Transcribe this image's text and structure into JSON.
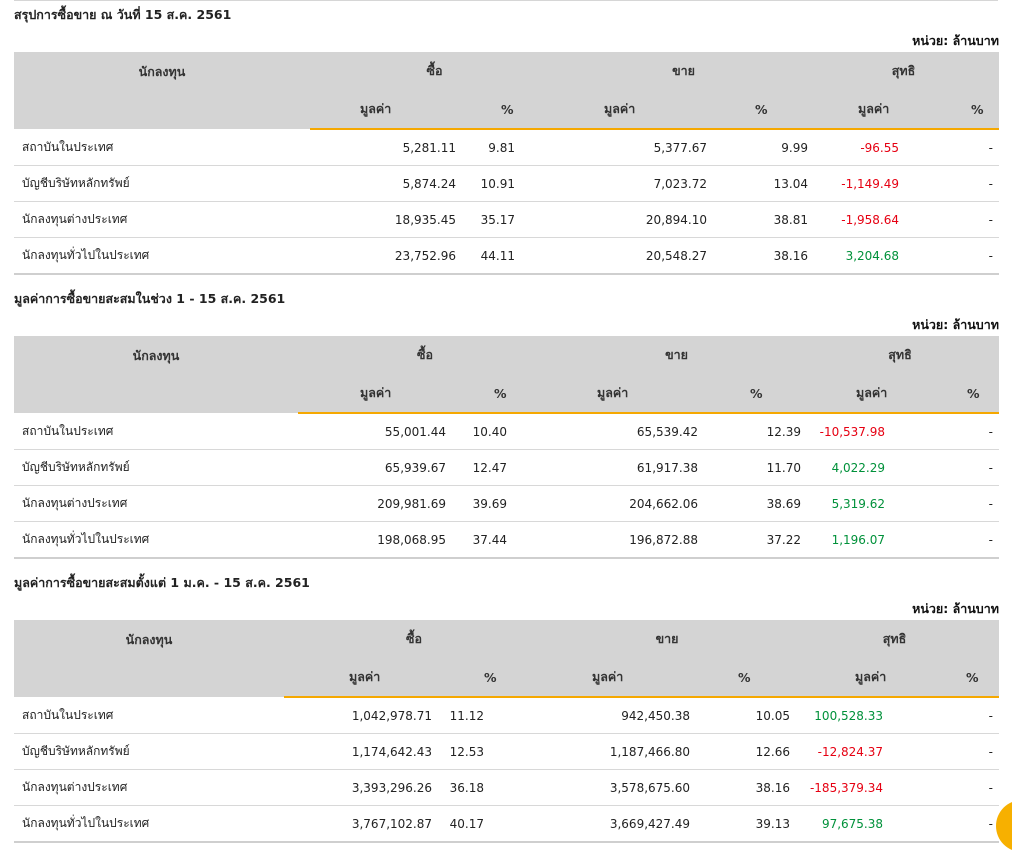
{
  "unit_label": "หน่วย: ล้านบาท",
  "headers": {
    "investor": "นักลงทุน",
    "buy": "ซื้อ",
    "sell": "ขาย",
    "net": "สุทธิ",
    "value": "มูลค่า",
    "percent": "%"
  },
  "sections": [
    {
      "title": "สรุปการซื้อขาย ณ วันที่ 15 ส.ค. 2561",
      "rows": [
        {
          "name": "สถาบันในประเทศ",
          "buy_value": "5,281.11",
          "buy_pct": "9.81",
          "sell_value": "5,377.67",
          "sell_pct": "9.99",
          "net_value": "-96.55",
          "net_pct": "-"
        },
        {
          "name": "บัญชีบริษัทหลักทรัพย์",
          "buy_value": "5,874.24",
          "buy_pct": "10.91",
          "sell_value": "7,023.72",
          "sell_pct": "13.04",
          "net_value": "-1,149.49",
          "net_pct": "-"
        },
        {
          "name": "นักลงทุนต่างประเทศ",
          "buy_value": "18,935.45",
          "buy_pct": "35.17",
          "sell_value": "20,894.10",
          "sell_pct": "38.81",
          "net_value": "-1,958.64",
          "net_pct": "-"
        },
        {
          "name": "นักลงทุนทั่วไปในประเทศ",
          "buy_value": "23,752.96",
          "buy_pct": "44.11",
          "sell_value": "20,548.27",
          "sell_pct": "38.16",
          "net_value": "3,204.68",
          "net_pct": "-"
        }
      ]
    },
    {
      "title": "มูลค่าการซื้อขายสะสมในช่วง 1 - 15 ส.ค. 2561",
      "rows": [
        {
          "name": "สถาบันในประเทศ",
          "buy_value": "55,001.44",
          "buy_pct": "10.40",
          "sell_value": "65,539.42",
          "sell_pct": "12.39",
          "net_value": "-10,537.98",
          "net_pct": "-"
        },
        {
          "name": "บัญชีบริษัทหลักทรัพย์",
          "buy_value": "65,939.67",
          "buy_pct": "12.47",
          "sell_value": "61,917.38",
          "sell_pct": "11.70",
          "net_value": "4,022.29",
          "net_pct": "-"
        },
        {
          "name": "นักลงทุนต่างประเทศ",
          "buy_value": "209,981.69",
          "buy_pct": "39.69",
          "sell_value": "204,662.06",
          "sell_pct": "38.69",
          "net_value": "5,319.62",
          "net_pct": "-"
        },
        {
          "name": "นักลงทุนทั่วไปในประเทศ",
          "buy_value": "198,068.95",
          "buy_pct": "37.44",
          "sell_value": "196,872.88",
          "sell_pct": "37.22",
          "net_value": "1,196.07",
          "net_pct": "-"
        }
      ]
    },
    {
      "title": "มูลค่าการซื้อขายสะสมตั้งแต่ 1 ม.ค. - 15 ส.ค. 2561",
      "rows": [
        {
          "name": "สถาบันในประเทศ",
          "buy_value": "1,042,978.71",
          "buy_pct": "11.12",
          "sell_value": "942,450.38",
          "sell_pct": "10.05",
          "net_value": "100,528.33",
          "net_pct": "-"
        },
        {
          "name": "บัญชีบริษัทหลักทรัพย์",
          "buy_value": "1,174,642.43",
          "buy_pct": "12.53",
          "sell_value": "1,187,466.80",
          "sell_pct": "12.66",
          "net_value": "-12,824.37",
          "net_pct": "-"
        },
        {
          "name": "นักลงทุนต่างประเทศ",
          "buy_value": "3,393,296.26",
          "buy_pct": "36.18",
          "sell_value": "3,578,675.60",
          "sell_pct": "38.16",
          "net_value": "-185,379.34",
          "net_pct": "-"
        },
        {
          "name": "นักลงทุนทั่วไปในประเทศ",
          "buy_value": "3,767,102.87",
          "buy_pct": "40.17",
          "sell_value": "3,669,427.49",
          "sell_pct": "39.13",
          "net_value": "97,675.38",
          "net_pct": "-"
        }
      ]
    }
  ],
  "colors": {
    "negative": "#e60012",
    "positive": "#00913a",
    "accent": "#f5a800",
    "header_bg": "#d4d4d4"
  },
  "icons": {
    "floating_button": "orange-circle-button"
  }
}
